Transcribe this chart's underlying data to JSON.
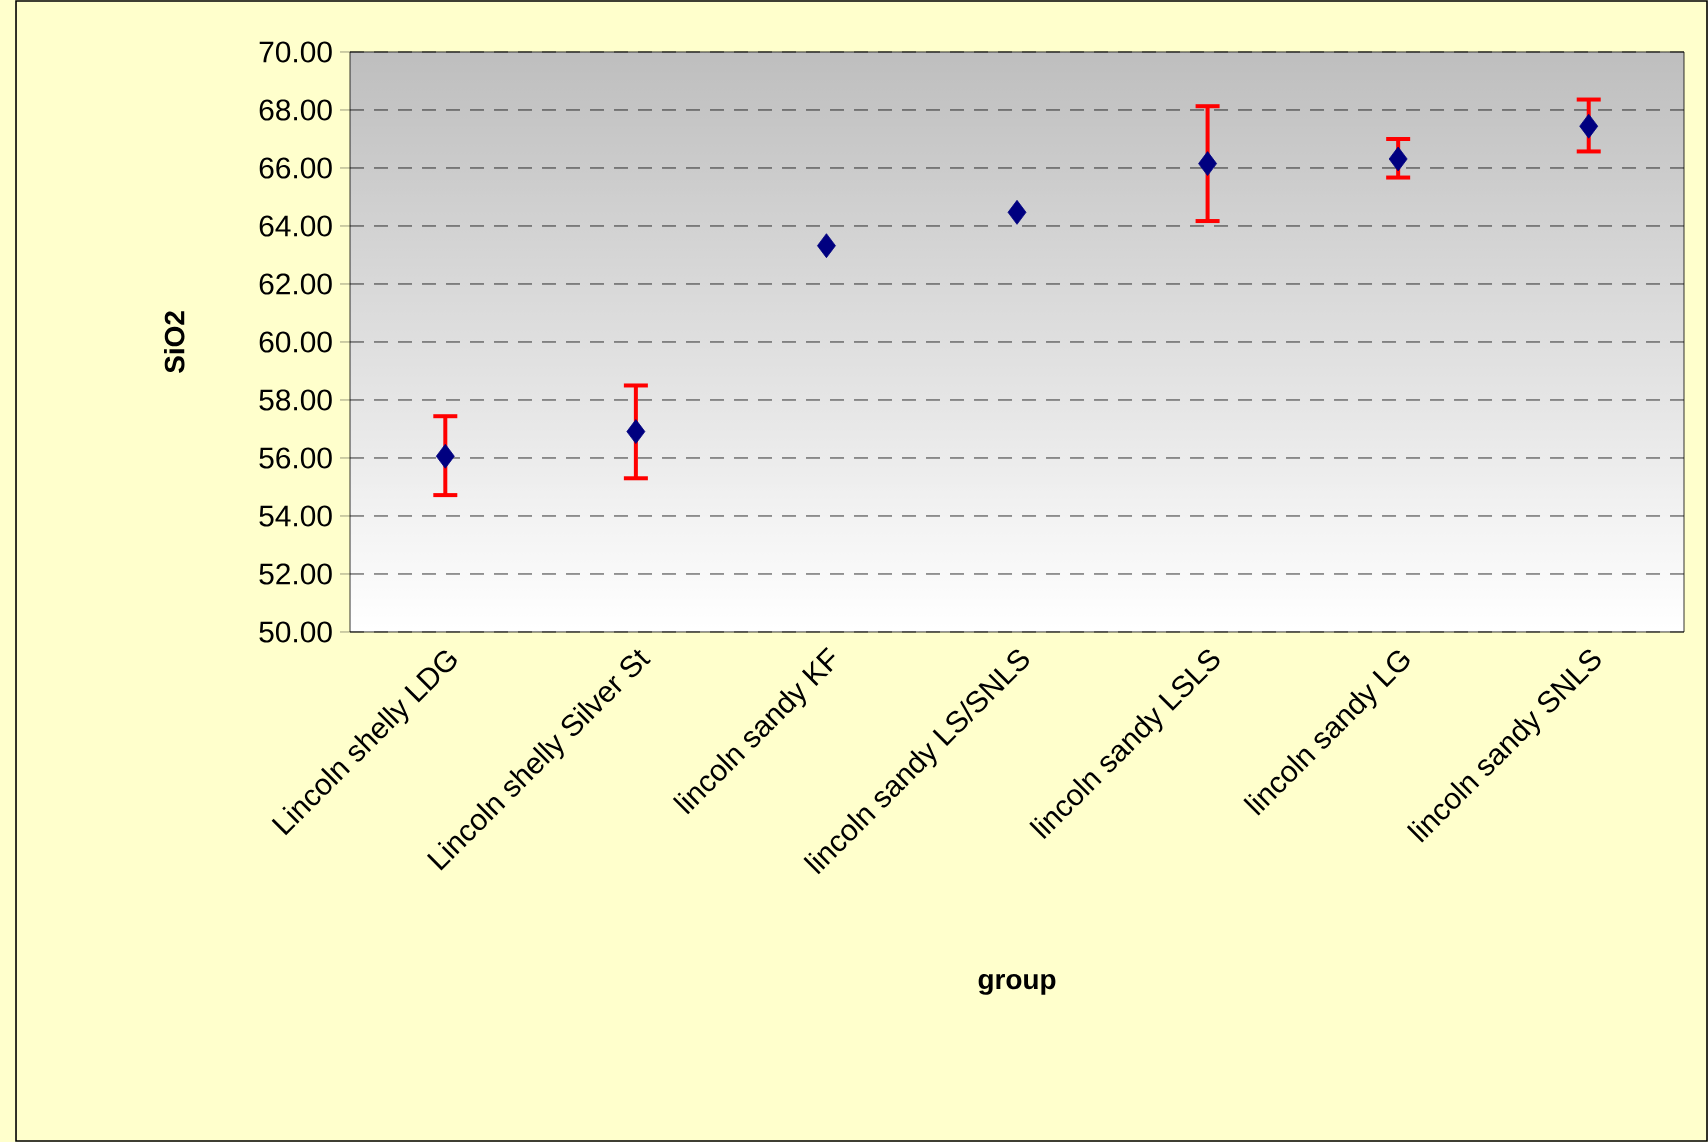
{
  "chart_data": {
    "type": "scatter",
    "xlabel": "group",
    "ylabel": "SiO2",
    "categories": [
      "Lincoln shelly LDG",
      "Lincoln shelly Silver St",
      "lincoln sandy KF",
      "lincoln sandy LS/SNLS",
      "lincoln sandy LSLS",
      "lincoln sandy LG",
      "lincoln sandy SNLS"
    ],
    "series": [
      {
        "color": "#000080",
        "values": [
          56.06,
          56.91,
          63.32,
          64.47,
          66.15,
          66.31,
          67.44
        ],
        "errors": [
          [
            54.72,
            57.44
          ],
          [
            55.3,
            58.5
          ],
          null,
          null,
          [
            64.17,
            68.13
          ],
          [
            65.67,
            67.0
          ],
          [
            66.57,
            68.36
          ]
        ]
      }
    ],
    "ylim": [
      50,
      70
    ],
    "yticks": [
      {
        "value": 50,
        "label": "50.00"
      },
      {
        "value": 52,
        "label": "52.00"
      },
      {
        "value": 54,
        "label": "54.00"
      },
      {
        "value": 56,
        "label": "56.00"
      },
      {
        "value": 58,
        "label": "58.00"
      },
      {
        "value": 60,
        "label": "60.00"
      },
      {
        "value": 62,
        "label": "62.00"
      },
      {
        "value": 64,
        "label": "64.00"
      },
      {
        "value": 66,
        "label": "66.00"
      },
      {
        "value": 68,
        "label": "68.00"
      },
      {
        "value": 70,
        "label": "70.00"
      }
    ],
    "grid": "y",
    "marker": "diamond"
  }
}
